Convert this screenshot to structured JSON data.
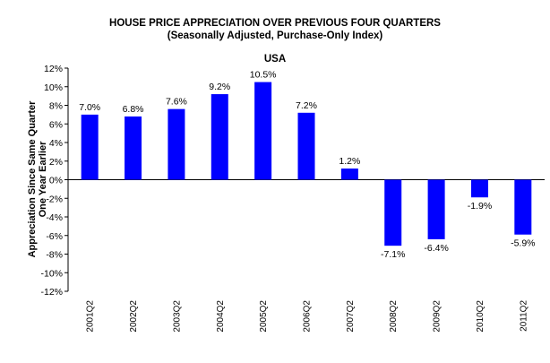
{
  "chart_data": {
    "type": "bar",
    "title": "HOUSE PRICE APPRECIATION OVER PREVIOUS FOUR QUARTERS",
    "subtitle": "(Seasonally Adjusted, Purchase-Only Index)",
    "panel_title": "USA",
    "ylabel_line1": "Appreciation Since Same Quarter",
    "ylabel_line2": "One Year Earlier",
    "xlabel": "",
    "categories": [
      "2001Q2",
      "2002Q2",
      "2003Q2",
      "2004Q2",
      "2005Q2",
      "2006Q2",
      "2007Q2",
      "2008Q2",
      "2009Q2",
      "2010Q2",
      "2011Q2"
    ],
    "values": [
      7.0,
      6.8,
      7.6,
      9.2,
      10.5,
      7.2,
      1.2,
      -7.1,
      -6.4,
      -1.9,
      -5.9
    ],
    "value_labels": [
      "7.0%",
      "6.8%",
      "7.6%",
      "9.2%",
      "10.5%",
      "7.2%",
      "1.2%",
      "-7.1%",
      "-6.4%",
      "-1.9%",
      "-5.9%"
    ],
    "ylim": [
      -12,
      12
    ],
    "yticks": [
      12,
      10,
      8,
      6,
      4,
      2,
      0,
      -2,
      -4,
      -6,
      -8,
      -10,
      -12
    ],
    "ytick_labels": [
      "12%",
      "10%",
      "8%",
      "6%",
      "4%",
      "2%",
      "0%",
      "-2%",
      "-4%",
      "-6%",
      "-8%",
      "-10%",
      "-12%"
    ],
    "grid": false,
    "bar_color": "#0000ff"
  }
}
